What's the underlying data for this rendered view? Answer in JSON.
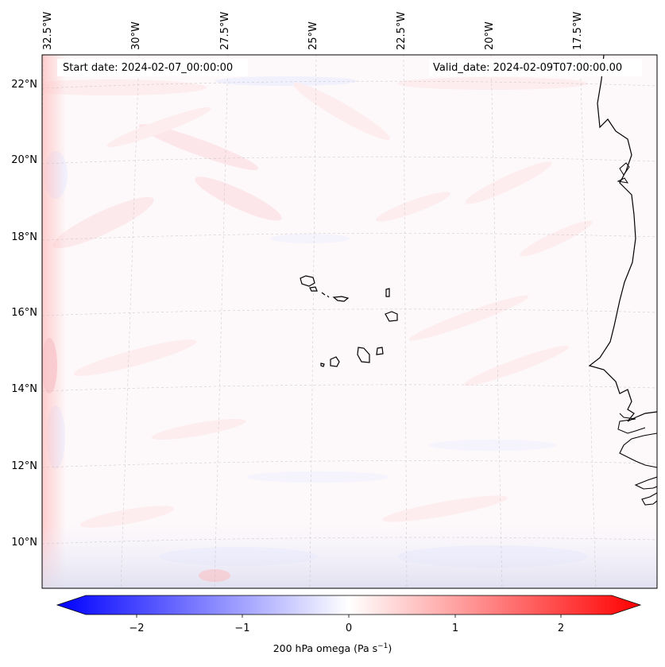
{
  "map": {
    "start_date": "Start date: 2024-02-07_00:00:00",
    "valid_date": "Valid_date: 2024-02-09T07:00:00.00",
    "lon_labels": [
      "32.5°W",
      "30°W",
      "27.5°W",
      "25°W",
      "22.5°W",
      "20°W",
      "17.5°W"
    ],
    "lat_labels": [
      "22°N",
      "20°N",
      "18°N",
      "16°N",
      "14°N",
      "12°N",
      "10°N"
    ],
    "extent": {
      "lon_min": -32.5,
      "lon_max": -15.3,
      "lat_min": 8.9,
      "lat_max": 22.6
    }
  },
  "colorbar": {
    "ticks": [
      "−2",
      "−1",
      "0",
      "1",
      "2"
    ],
    "range": [
      -2.6,
      2.6
    ],
    "label_text": "200 hPa omega (Pa s",
    "label_exp": "−1",
    "label_close": ")",
    "colors": {
      "low": "#0000ff",
      "mid": "#ffffff",
      "high": "#ff0000"
    }
  }
}
